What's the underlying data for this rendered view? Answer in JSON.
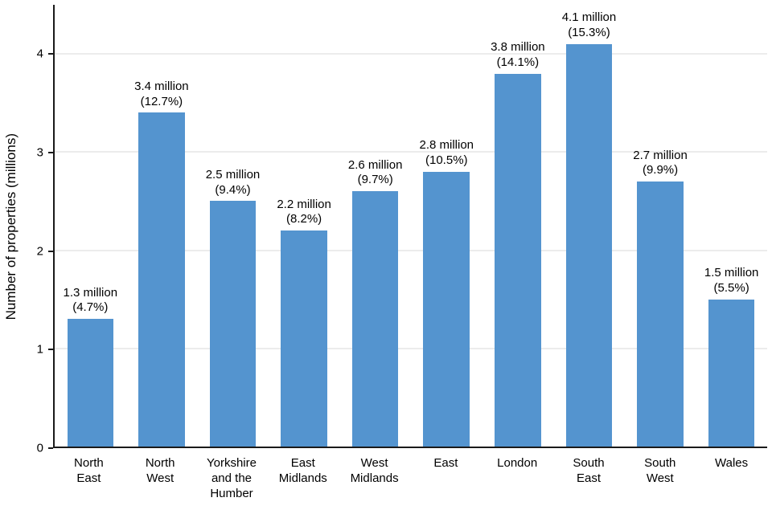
{
  "chart_data": {
    "type": "bar",
    "title": "",
    "xlabel": "",
    "ylabel": "Number of properties (millions)",
    "ylim": [
      0,
      4.5
    ],
    "yticks": [
      0,
      1,
      2,
      3,
      4
    ],
    "grid": "horizontal",
    "legend": "none",
    "bar_color": "#5494cf",
    "categories": [
      "North East",
      "North West",
      "Yorkshire and the Humber",
      "East Midlands",
      "West Midlands",
      "East",
      "London",
      "South East",
      "South West",
      "Wales"
    ],
    "category_lines": [
      [
        "North",
        "East"
      ],
      [
        "North",
        "West"
      ],
      [
        "Yorkshire",
        "and the",
        "Humber"
      ],
      [
        "East",
        "Midlands"
      ],
      [
        "West",
        "Midlands"
      ],
      [
        "East"
      ],
      [
        "London"
      ],
      [
        "South",
        "East"
      ],
      [
        "South",
        "West"
      ],
      [
        "Wales"
      ]
    ],
    "values": [
      1.3,
      3.4,
      2.5,
      2.2,
      2.6,
      2.8,
      3.8,
      4.1,
      2.7,
      1.5
    ],
    "value_labels": [
      "1.3 million",
      "3.4 million",
      "2.5 million",
      "2.2 million",
      "2.6 million",
      "2.8 million",
      "3.8 million",
      "4.1 million",
      "2.7 million",
      "1.5 million"
    ],
    "pct_labels": [
      "(4.7%)",
      "(12.7%)",
      "(9.4%)",
      "(8.2%)",
      "(9.7%)",
      "(10.5%)",
      "(14.1%)",
      "(15.3%)",
      "(9.9%)",
      "(5.5%)"
    ]
  }
}
